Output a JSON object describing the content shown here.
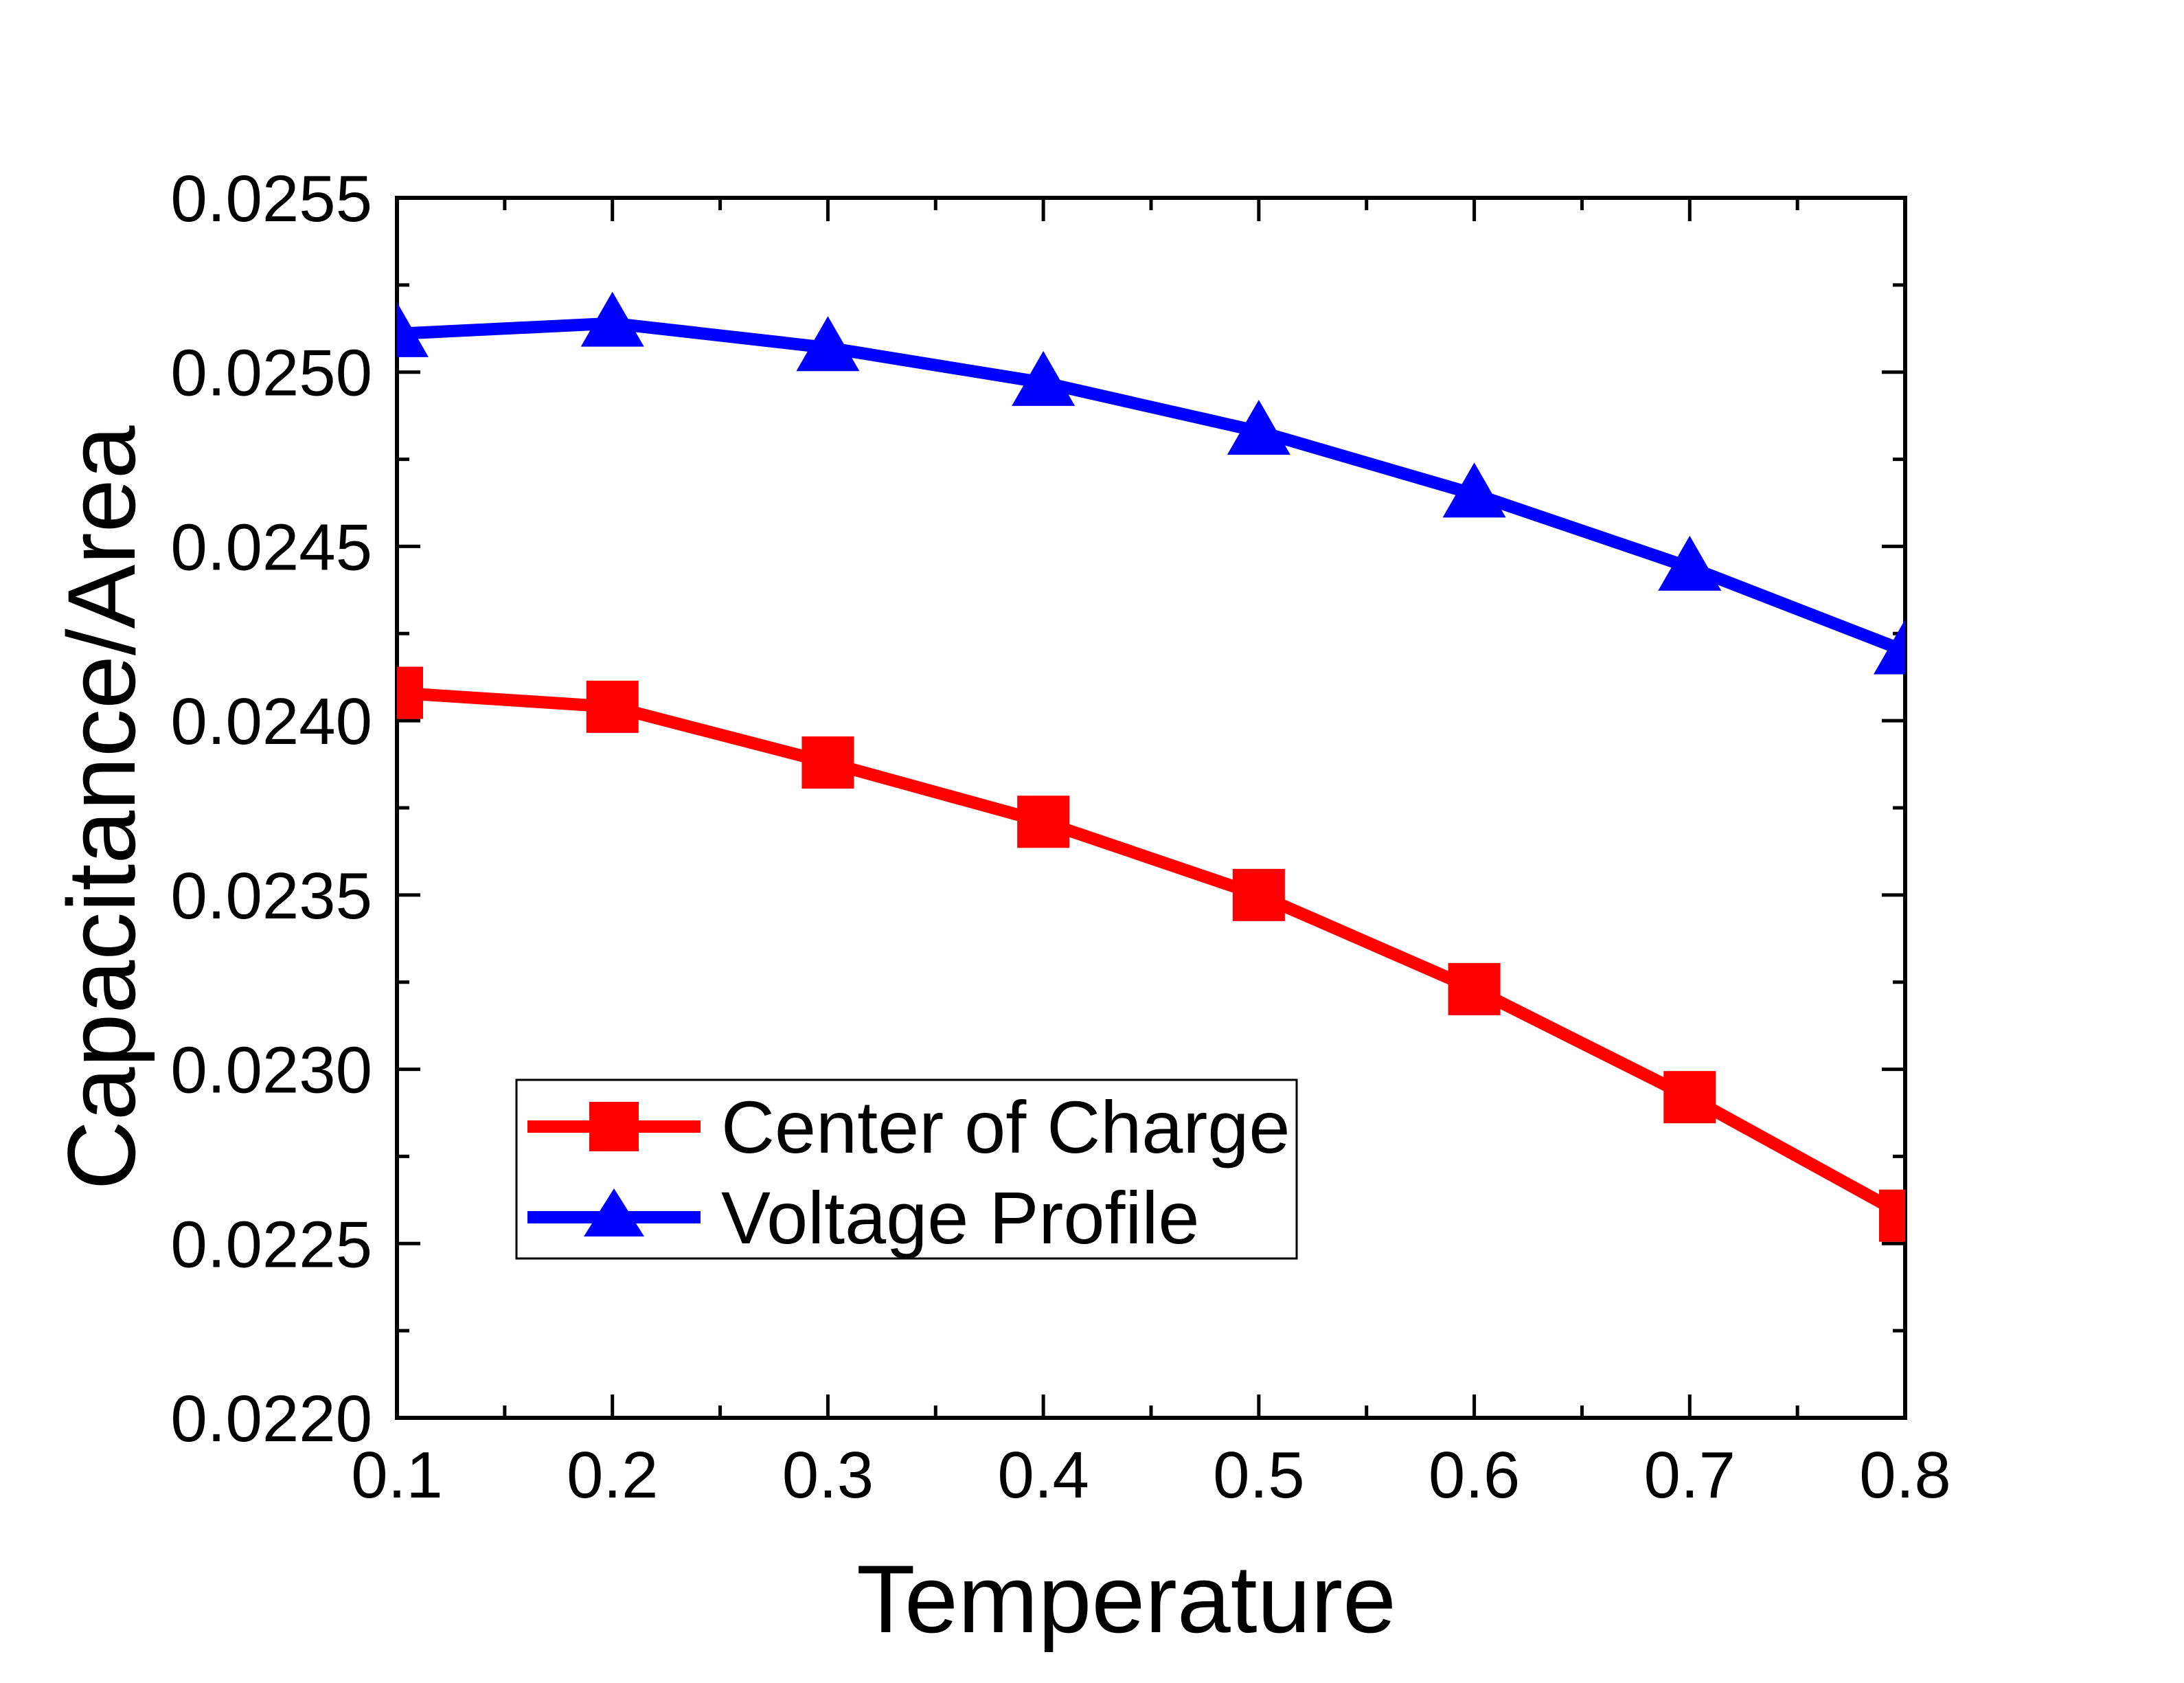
{
  "chart_data": {
    "type": "line",
    "title": "",
    "xlabel": "Temperature",
    "ylabel": "Capacitance/Area",
    "xlim": [
      0.1,
      0.8
    ],
    "ylim": [
      0.022,
      0.0255
    ],
    "x": [
      0.1,
      0.2,
      0.3,
      0.4,
      0.5,
      0.6,
      0.7,
      0.8
    ],
    "x_ticks": [
      "0.1",
      "0.2",
      "0.3",
      "0.4",
      "0.5",
      "0.6",
      "0.7",
      "0.8"
    ],
    "y_ticks": [
      "0.0220",
      "0.0225",
      "0.0230",
      "0.0235",
      "0.0240",
      "0.0245",
      "0.0250",
      "0.0255"
    ],
    "legend_position": "lower-left",
    "grid": false,
    "series": [
      {
        "name": "Center of Charge",
        "color": "#ff0000",
        "marker": "square",
        "values": [
          0.02408,
          0.02404,
          0.02388,
          0.02371,
          0.0235,
          0.02323,
          0.02292,
          0.02258
        ]
      },
      {
        "name": "Voltage Profile",
        "color": "#0000ff",
        "marker": "triangle",
        "values": [
          0.02511,
          0.02514,
          0.02507,
          0.02497,
          0.02483,
          0.02465,
          0.02444,
          0.0242
        ]
      }
    ]
  }
}
